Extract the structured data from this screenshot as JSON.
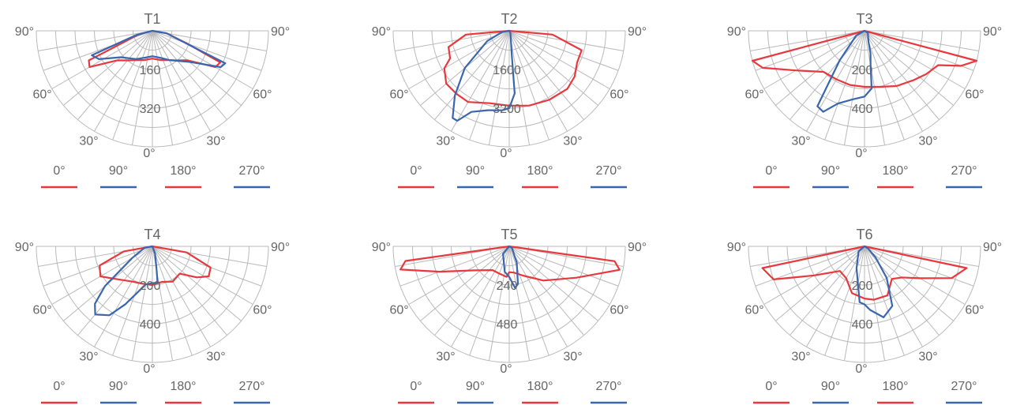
{
  "colors": {
    "red": "#e8383d",
    "blue": "#3a66b0",
    "grid": "#b9b9b9",
    "text": "#666666"
  },
  "chart_data": [
    {
      "type": "polar",
      "title": "T1",
      "radial_ticks": [
        160,
        320
      ],
      "rmax": 480,
      "angle_labels": [
        "0°",
        "30°",
        "60°",
        "90°"
      ],
      "legend": [
        {
          "label": "0°",
          "color": "#e8383d"
        },
        {
          "label": "90°",
          "color": "#3a66b0"
        },
        {
          "label": "180°",
          "color": "#e8383d"
        },
        {
          "label": "270°",
          "color": "#3a66b0"
        }
      ],
      "series": [
        {
          "color": "#e8383d",
          "points": [
            [
              -90,
              0
            ],
            [
              -75,
              60
            ],
            [
              -65,
              290
            ],
            [
              -60,
              300
            ],
            [
              -50,
              190
            ],
            [
              -40,
              160
            ],
            [
              -30,
              140
            ],
            [
              -15,
              125
            ],
            [
              0,
              115
            ],
            [
              15,
              125
            ],
            [
              30,
              140
            ],
            [
              40,
              160
            ],
            [
              50,
              190
            ],
            [
              60,
              300
            ],
            [
              65,
              310
            ],
            [
              70,
              150
            ],
            [
              80,
              60
            ],
            [
              90,
              0
            ]
          ]
        },
        {
          "color": "#3a66b0",
          "points": [
            [
              -90,
              0
            ],
            [
              -75,
              70
            ],
            [
              -68,
              270
            ],
            [
              -62,
              250
            ],
            [
              -50,
              170
            ],
            [
              -30,
              135
            ],
            [
              -15,
              115
            ],
            [
              0,
              105
            ],
            [
              15,
              115
            ],
            [
              30,
              140
            ],
            [
              50,
              200
            ],
            [
              62,
              320
            ],
            [
              66,
              330
            ],
            [
              70,
              140
            ],
            [
              80,
              60
            ],
            [
              90,
              0
            ]
          ]
        }
      ]
    },
    {
      "type": "polar",
      "title": "T2",
      "radial_ticks": [
        1600,
        3200
      ],
      "rmax": 4800,
      "angle_labels": [
        "0°",
        "30°",
        "60°",
        "90°"
      ],
      "legend": [
        {
          "label": "0°",
          "color": "#e8383d"
        },
        {
          "label": "90°",
          "color": "#3a66b0"
        },
        {
          "label": "180°",
          "color": "#e8383d"
        },
        {
          "label": "270°",
          "color": "#3a66b0"
        }
      ],
      "series": [
        {
          "color": "#e8383d",
          "points": [
            [
              -90,
              0
            ],
            [
              -85,
              1800
            ],
            [
              -75,
              2600
            ],
            [
              -65,
              2700
            ],
            [
              -60,
              3100
            ],
            [
              -50,
              3400
            ],
            [
              -40,
              3400
            ],
            [
              -30,
              3400
            ],
            [
              -15,
              3100
            ],
            [
              0,
              3100
            ],
            [
              15,
              3200
            ],
            [
              30,
              3300
            ],
            [
              45,
              3400
            ],
            [
              55,
              3300
            ],
            [
              65,
              3100
            ],
            [
              75,
              3100
            ],
            [
              85,
              1800
            ],
            [
              90,
              0
            ]
          ]
        },
        {
          "color": "#3a66b0",
          "points": [
            [
              -90,
              0
            ],
            [
              -80,
              300
            ],
            [
              -65,
              1000
            ],
            [
              -50,
              2400
            ],
            [
              -40,
              3500
            ],
            [
              -33,
              4300
            ],
            [
              -30,
              4300
            ],
            [
              -25,
              3700
            ],
            [
              -15,
              3400
            ],
            [
              -5,
              3300
            ],
            [
              0,
              3200
            ],
            [
              5,
              2600
            ],
            [
              6,
              1000
            ],
            [
              10,
              400
            ],
            [
              30,
              100
            ],
            [
              90,
              0
            ]
          ]
        }
      ]
    },
    {
      "type": "polar",
      "title": "T3",
      "radial_ticks": [
        200,
        400
      ],
      "rmax": 600,
      "angle_labels": [
        "0°",
        "30°",
        "60°",
        "90°"
      ],
      "legend": [
        {
          "label": "0°",
          "color": "#e8383d"
        },
        {
          "label": "90°",
          "color": "#3a66b0"
        },
        {
          "label": "180°",
          "color": "#e8383d"
        },
        {
          "label": "270°",
          "color": "#3a66b0"
        }
      ],
      "series": [
        {
          "color": "#e8383d",
          "points": [
            [
              -90,
              0
            ],
            [
              -75,
              600
            ],
            [
              -70,
              560
            ],
            [
              -60,
              410
            ],
            [
              -45,
              300
            ],
            [
              -30,
              290
            ],
            [
              -15,
              290
            ],
            [
              0,
              290
            ],
            [
              15,
              300
            ],
            [
              30,
              330
            ],
            [
              45,
              360
            ],
            [
              55,
              390
            ],
            [
              65,
              420
            ],
            [
              70,
              530
            ],
            [
              75,
              600
            ],
            [
              90,
              0
            ]
          ]
        },
        {
          "color": "#3a66b0",
          "points": [
            [
              -90,
              0
            ],
            [
              -60,
              50
            ],
            [
              -40,
              200
            ],
            [
              -32,
              460
            ],
            [
              -27,
              470
            ],
            [
              -20,
              400
            ],
            [
              -10,
              360
            ],
            [
              0,
              340
            ],
            [
              7,
              300
            ],
            [
              10,
              180
            ],
            [
              15,
              120
            ],
            [
              20,
              60
            ],
            [
              60,
              20
            ],
            [
              90,
              0
            ]
          ]
        }
      ]
    },
    {
      "type": "polar",
      "title": "T4",
      "radial_ticks": [
        200,
        400
      ],
      "rmax": 600,
      "angle_labels": [
        "0°",
        "30°",
        "60°",
        "90°"
      ],
      "legend": [
        {
          "label": "0°",
          "color": "#e8383d"
        },
        {
          "label": "90°",
          "color": "#3a66b0"
        },
        {
          "label": "180°",
          "color": "#e8383d"
        },
        {
          "label": "270°",
          "color": "#3a66b0"
        }
      ],
      "series": [
        {
          "color": "#e8383d",
          "points": [
            [
              -90,
              0
            ],
            [
              -80,
              150
            ],
            [
              -70,
              290
            ],
            [
              -60,
              310
            ],
            [
              -50,
              260
            ],
            [
              -30,
              210
            ],
            [
              -15,
              200
            ],
            [
              0,
              200
            ],
            [
              15,
              190
            ],
            [
              30,
              210
            ],
            [
              45,
              200
            ],
            [
              55,
              280
            ],
            [
              62,
              330
            ],
            [
              70,
              320
            ],
            [
              80,
              180
            ],
            [
              90,
              0
            ]
          ]
        },
        {
          "color": "#3a66b0",
          "points": [
            [
              -90,
              0
            ],
            [
              -80,
              40
            ],
            [
              -60,
              120
            ],
            [
              -50,
              320
            ],
            [
              -45,
              420
            ],
            [
              -40,
              460
            ],
            [
              -32,
              420
            ],
            [
              -25,
              330
            ],
            [
              -10,
              200
            ],
            [
              0,
              190
            ],
            [
              8,
              190
            ],
            [
              10,
              130
            ],
            [
              20,
              40
            ],
            [
              90,
              0
            ]
          ]
        }
      ]
    },
    {
      "type": "polar",
      "title": "T5",
      "radial_ticks": [
        240,
        480
      ],
      "rmax": 720,
      "angle_labels": [
        "0°",
        "30°",
        "60°",
        "90°"
      ],
      "legend": [
        {
          "label": "0°",
          "color": "#e8383d"
        },
        {
          "label": "90°",
          "color": "#3a66b0"
        },
        {
          "label": "180°",
          "color": "#e8383d"
        },
        {
          "label": "270°",
          "color": "#3a66b0"
        }
      ],
      "series": [
        {
          "color": "#e8383d",
          "points": [
            [
              -90,
              0
            ],
            [
              -82,
              650
            ],
            [
              -78,
              690
            ],
            [
              -70,
              460
            ],
            [
              -55,
              260
            ],
            [
              -35,
              180
            ],
            [
              -20,
              180
            ],
            [
              -5,
              190
            ],
            [
              0,
              160
            ],
            [
              10,
              165
            ],
            [
              25,
              200
            ],
            [
              45,
              300
            ],
            [
              65,
              460
            ],
            [
              78,
              700
            ],
            [
              82,
              660
            ],
            [
              90,
              0
            ]
          ]
        },
        {
          "color": "#3a66b0",
          "points": [
            [
              -90,
              0
            ],
            [
              -40,
              60
            ],
            [
              -10,
              160
            ],
            [
              0,
              190
            ],
            [
              8,
              260
            ],
            [
              13,
              240
            ],
            [
              18,
              160
            ],
            [
              25,
              110
            ],
            [
              30,
              60
            ],
            [
              60,
              20
            ],
            [
              90,
              0
            ]
          ]
        }
      ]
    },
    {
      "type": "polar",
      "title": "T6",
      "radial_ticks": [
        200,
        400
      ],
      "rmax": 600,
      "angle_labels": [
        "0°",
        "30°",
        "60°",
        "90°"
      ],
      "legend": [
        {
          "label": "0°",
          "color": "#e8383d"
        },
        {
          "label": "90°",
          "color": "#3a66b0"
        },
        {
          "label": "180°",
          "color": "#e8383d"
        },
        {
          "label": "270°",
          "color": "#3a66b0"
        }
      ],
      "series": [
        {
          "color": "#e8383d",
          "points": [
            [
              -90,
              0
            ],
            [
              -78,
              540
            ],
            [
              -70,
              500
            ],
            [
              -60,
              300
            ],
            [
              -45,
              180
            ],
            [
              -30,
              190
            ],
            [
              -15,
              250
            ],
            [
              0,
              270
            ],
            [
              10,
              280
            ],
            [
              25,
              280
            ],
            [
              40,
              220
            ],
            [
              50,
              250
            ],
            [
              60,
              330
            ],
            [
              70,
              480
            ],
            [
              78,
              540
            ],
            [
              90,
              0
            ]
          ]
        },
        {
          "color": "#3a66b0",
          "points": [
            [
              -90,
              0
            ],
            [
              -50,
              40
            ],
            [
              -20,
              120
            ],
            [
              -5,
              290
            ],
            [
              0,
              300
            ],
            [
              5,
              330
            ],
            [
              15,
              380
            ],
            [
              25,
              340
            ],
            [
              35,
              200
            ],
            [
              45,
              80
            ],
            [
              60,
              20
            ],
            [
              90,
              0
            ]
          ]
        }
      ]
    }
  ]
}
